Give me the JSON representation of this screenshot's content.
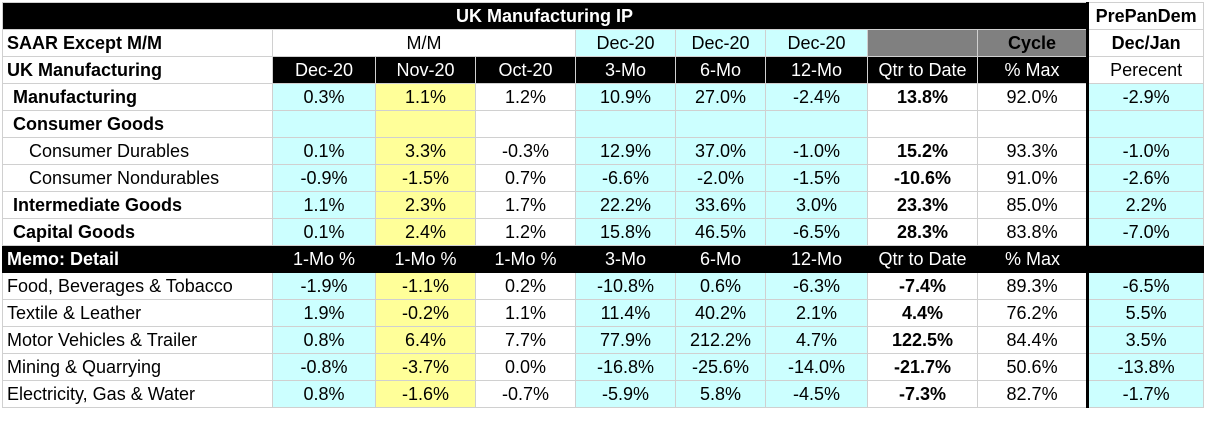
{
  "title": "UK Manufacturing IP",
  "pre_pan_dem": "PrePanDem",
  "header2": {
    "label": "SAAR Except M/M",
    "mm": "M/M",
    "dec1": "Dec-20",
    "dec2": "Dec-20",
    "dec3": "Dec-20",
    "cycle": "Cycle",
    "decjan": "Dec/Jan"
  },
  "header3": {
    "label": "UK Manufacturing",
    "cols": [
      "Dec-20",
      "Nov-20",
      "Oct-20",
      "3-Mo",
      "6-Mo",
      "12-Mo",
      "Qtr to Date",
      "% Max"
    ],
    "pct": "Perecent"
  },
  "rows": [
    {
      "label": "Manufacturing",
      "vals": [
        "0.3%",
        "1.1%",
        "1.2%",
        "10.9%",
        "27.0%",
        "-2.4%",
        "13.8%",
        "92.0%",
        "-2.9%"
      ]
    },
    {
      "label": "Consumer Goods",
      "vals": [
        "",
        "",
        "",
        "",
        "",
        "",
        "",
        "",
        ""
      ]
    },
    {
      "label": "Consumer Durables",
      "vals": [
        "0.1%",
        "3.3%",
        "-0.3%",
        "12.9%",
        "37.0%",
        "-1.0%",
        "15.2%",
        "93.3%",
        "-1.0%"
      ]
    },
    {
      "label": "Consumer Nondurables",
      "vals": [
        "-0.9%",
        "-1.5%",
        "0.7%",
        "-6.6%",
        "-2.0%",
        "-1.5%",
        "-10.6%",
        "91.0%",
        "-2.6%"
      ]
    },
    {
      "label": "Intermediate Goods",
      "vals": [
        "1.1%",
        "2.3%",
        "1.7%",
        "22.2%",
        "33.6%",
        "3.0%",
        "23.3%",
        "85.0%",
        "2.2%"
      ]
    },
    {
      "label": "Capital Goods",
      "vals": [
        "0.1%",
        "2.4%",
        "1.2%",
        "15.8%",
        "46.5%",
        "-6.5%",
        "28.3%",
        "83.8%",
        "-7.0%"
      ]
    }
  ],
  "memo": {
    "label": "Memo: Detail",
    "cols": [
      "1-Mo %",
      "1-Mo %",
      "1-Mo %",
      "3-Mo",
      "6-Mo",
      "12-Mo",
      "Qtr to Date",
      "% Max"
    ]
  },
  "detail_rows": [
    {
      "label": "Food, Beverages & Tobacco",
      "vals": [
        "-1.9%",
        "-1.1%",
        "0.2%",
        "-10.8%",
        "0.6%",
        "-6.3%",
        "-7.4%",
        "89.3%",
        "-6.5%"
      ]
    },
    {
      "label": "Textile & Leather",
      "vals": [
        "1.9%",
        "-0.2%",
        "1.1%",
        "11.4%",
        "40.2%",
        "2.1%",
        "4.4%",
        "76.2%",
        "5.5%"
      ]
    },
    {
      "label": "Motor Vehicles & Trailer",
      "vals": [
        "0.8%",
        "6.4%",
        "7.7%",
        "77.9%",
        "212.2%",
        "4.7%",
        "122.5%",
        "84.4%",
        "3.5%"
      ]
    },
    {
      "label": "Mining & Quarrying",
      "vals": [
        "-0.8%",
        "-3.7%",
        "0.0%",
        "-16.8%",
        "-25.6%",
        "-14.0%",
        "-21.7%",
        "50.6%",
        "-13.8%"
      ]
    },
    {
      "label": "Electricity, Gas & Water",
      "vals": [
        "0.8%",
        "-1.6%",
        "-0.7%",
        "-5.9%",
        "5.8%",
        "-4.5%",
        "-7.3%",
        "82.7%",
        "-1.7%"
      ]
    }
  ],
  "colors": {
    "cyan": "#ccffff",
    "yellow": "#ffff99",
    "header_black": "#000000",
    "header_gray": "#808080"
  }
}
